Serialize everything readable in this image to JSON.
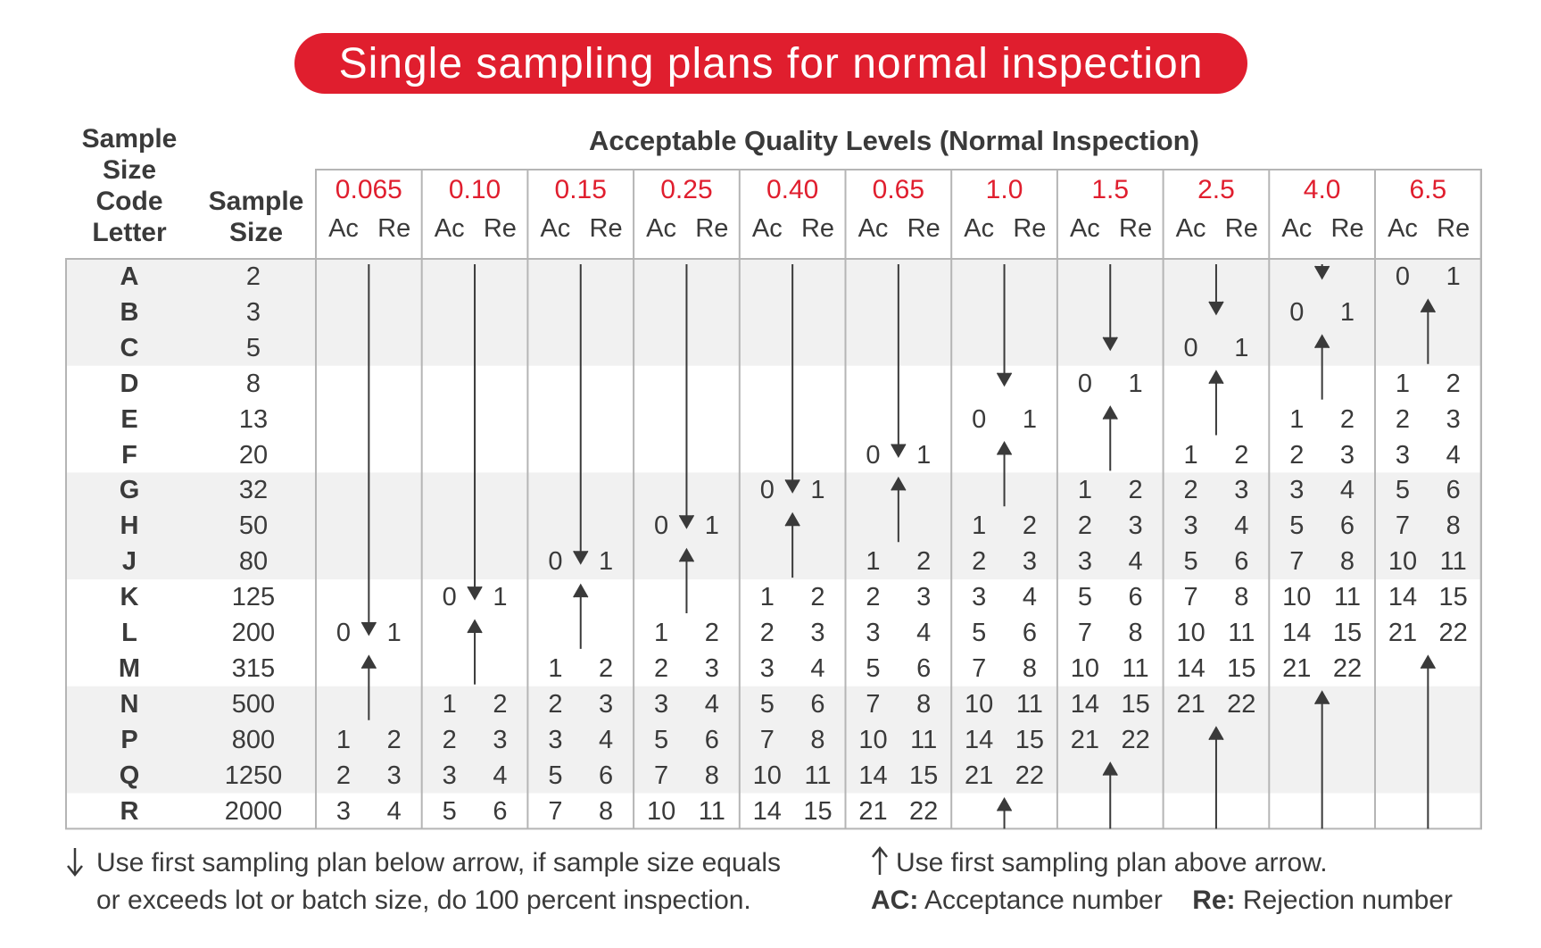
{
  "title": "Single sampling plans for normal inspection",
  "headers": {
    "code_letter": [
      "Sample",
      "Size",
      "Code",
      "Letter"
    ],
    "sample_size": [
      "Sample",
      "Size"
    ],
    "aql_title": "Acceptable Quality Levels (Normal Inspection)",
    "ac": "Ac",
    "re": "Re"
  },
  "aql_levels": [
    "0.065",
    "0.10",
    "0.15",
    "0.25",
    "0.40",
    "0.65",
    "1.0",
    "1.5",
    "2.5",
    "4.0",
    "6.5"
  ],
  "code_letters": [
    "A",
    "B",
    "C",
    "D",
    "E",
    "F",
    "G",
    "H",
    "J",
    "K",
    "L",
    "M",
    "N",
    "P",
    "Q",
    "R"
  ],
  "sample_sizes": [
    "2",
    "3",
    "5",
    "8",
    "13",
    "20",
    "32",
    "50",
    "80",
    "125",
    "200",
    "315",
    "500",
    "800",
    "1250",
    "2000"
  ],
  "plans": [
    [
      [
        10,
        "0",
        "1"
      ],
      [
        13,
        "1",
        "2"
      ],
      [
        14,
        "2",
        "3"
      ],
      [
        15,
        "3",
        "4"
      ]
    ],
    [
      [
        9,
        "0",
        "1"
      ],
      [
        12,
        "1",
        "2"
      ],
      [
        13,
        "2",
        "3"
      ],
      [
        14,
        "3",
        "4"
      ],
      [
        15,
        "5",
        "6"
      ]
    ],
    [
      [
        8,
        "0",
        "1"
      ],
      [
        11,
        "1",
        "2"
      ],
      [
        12,
        "2",
        "3"
      ],
      [
        13,
        "3",
        "4"
      ],
      [
        14,
        "5",
        "6"
      ],
      [
        15,
        "7",
        "8"
      ]
    ],
    [
      [
        7,
        "0",
        "1"
      ],
      [
        10,
        "1",
        "2"
      ],
      [
        11,
        "2",
        "3"
      ],
      [
        12,
        "3",
        "4"
      ],
      [
        13,
        "5",
        "6"
      ],
      [
        14,
        "7",
        "8"
      ],
      [
        15,
        "10",
        "11"
      ]
    ],
    [
      [
        6,
        "0",
        "1"
      ],
      [
        9,
        "1",
        "2"
      ],
      [
        10,
        "2",
        "3"
      ],
      [
        11,
        "3",
        "4"
      ],
      [
        12,
        "5",
        "6"
      ],
      [
        13,
        "7",
        "8"
      ],
      [
        14,
        "10",
        "11"
      ],
      [
        15,
        "14",
        "15"
      ]
    ],
    [
      [
        5,
        "0",
        "1"
      ],
      [
        8,
        "1",
        "2"
      ],
      [
        9,
        "2",
        "3"
      ],
      [
        10,
        "3",
        "4"
      ],
      [
        11,
        "5",
        "6"
      ],
      [
        12,
        "7",
        "8"
      ],
      [
        13,
        "10",
        "11"
      ],
      [
        14,
        "14",
        "15"
      ],
      [
        15,
        "21",
        "22"
      ]
    ],
    [
      [
        4,
        "0",
        "1"
      ],
      [
        7,
        "1",
        "2"
      ],
      [
        8,
        "2",
        "3"
      ],
      [
        9,
        "3",
        "4"
      ],
      [
        10,
        "5",
        "6"
      ],
      [
        11,
        "7",
        "8"
      ],
      [
        12,
        "10",
        "11"
      ],
      [
        13,
        "14",
        "15"
      ],
      [
        14,
        "21",
        "22"
      ]
    ],
    [
      [
        3,
        "0",
        "1"
      ],
      [
        6,
        "1",
        "2"
      ],
      [
        7,
        "2",
        "3"
      ],
      [
        8,
        "3",
        "4"
      ],
      [
        9,
        "5",
        "6"
      ],
      [
        10,
        "7",
        "8"
      ],
      [
        11,
        "10",
        "11"
      ],
      [
        12,
        "14",
        "15"
      ],
      [
        13,
        "21",
        "22"
      ]
    ],
    [
      [
        2,
        "0",
        "1"
      ],
      [
        5,
        "1",
        "2"
      ],
      [
        6,
        "2",
        "3"
      ],
      [
        7,
        "3",
        "4"
      ],
      [
        8,
        "5",
        "6"
      ],
      [
        9,
        "7",
        "8"
      ],
      [
        10,
        "10",
        "11"
      ],
      [
        11,
        "14",
        "15"
      ],
      [
        12,
        "21",
        "22"
      ]
    ],
    [
      [
        1,
        "0",
        "1"
      ],
      [
        4,
        "1",
        "2"
      ],
      [
        5,
        "2",
        "3"
      ],
      [
        6,
        "3",
        "4"
      ],
      [
        7,
        "5",
        "6"
      ],
      [
        8,
        "7",
        "8"
      ],
      [
        9,
        "10",
        "11"
      ],
      [
        10,
        "14",
        "15"
      ],
      [
        11,
        "21",
        "22"
      ]
    ],
    [
      [
        0,
        "0",
        "1"
      ],
      [
        3,
        "1",
        "2"
      ],
      [
        4,
        "2",
        "3"
      ],
      [
        5,
        "3",
        "4"
      ],
      [
        6,
        "5",
        "6"
      ],
      [
        7,
        "7",
        "8"
      ],
      [
        8,
        "10",
        "11"
      ],
      [
        9,
        "14",
        "15"
      ],
      [
        10,
        "21",
        "22"
      ]
    ]
  ],
  "arrows": [
    [
      "down",
      0,
      10
    ],
    [
      "up",
      11,
      12
    ],
    [
      "down",
      0,
      9
    ],
    [
      "up",
      10,
      11
    ],
    [
      "down",
      0,
      8
    ],
    [
      "up",
      9,
      10
    ],
    [
      "down",
      0,
      7
    ],
    [
      "up",
      8,
      9
    ],
    [
      "down",
      0,
      6
    ],
    [
      "up",
      7,
      8
    ],
    [
      "down",
      0,
      5
    ],
    [
      "up",
      6,
      7
    ],
    [
      "down",
      0,
      3
    ],
    [
      "up",
      5,
      6
    ],
    [
      "up",
      15,
      15
    ],
    [
      "down",
      0,
      2
    ],
    [
      "up",
      4,
      5
    ],
    [
      "up",
      14,
      15
    ],
    [
      "down",
      0,
      1
    ],
    [
      "up",
      3,
      4
    ],
    [
      "up",
      13,
      15
    ],
    [
      "down",
      0,
      0
    ],
    [
      "up",
      2,
      3
    ],
    [
      "up",
      12,
      15
    ],
    [
      "up",
      1,
      2
    ],
    [
      "up",
      11,
      15
    ]
  ],
  "footer": {
    "down_note_1": "Use first sampling plan below arrow, if sample size equals",
    "down_note_2": "or exceeds lot or batch size, do 100 percent inspection.",
    "up_note": "Use first sampling plan above arrow.",
    "ac_label": "AC:",
    "ac_text": "Acceptance number",
    "re_label": "Re:",
    "re_text": "Rejection number"
  },
  "colors": {
    "accent": "#e01e2e",
    "text": "#3a3a3a",
    "band": "#f1f1f1",
    "grid": "#b5b5b5"
  }
}
